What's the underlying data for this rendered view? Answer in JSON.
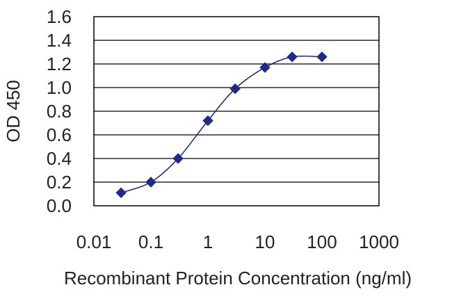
{
  "chart_data": {
    "type": "line",
    "title": "",
    "xlabel": "Recombinant Protein Concentration (ng/ml)",
    "ylabel": "OD 450",
    "x_scale": "log",
    "xlim": [
      0.01,
      1000
    ],
    "ylim": [
      0.0,
      1.6
    ],
    "x_ticks": [
      "0.01",
      "0.1",
      "1",
      "10",
      "100",
      "1000"
    ],
    "y_ticks": [
      "0.0",
      "0.2",
      "0.4",
      "0.6",
      "0.8",
      "1.0",
      "1.2",
      "1.4",
      "1.6"
    ],
    "grid": "horizontal",
    "legend": "none",
    "series": [
      {
        "x": [
          0.03,
          0.1,
          0.3,
          1,
          3,
          10,
          30,
          100
        ],
        "y": [
          0.11,
          0.2,
          0.4,
          0.72,
          0.99,
          1.17,
          1.26,
          1.26
        ],
        "color": "#1f2a8c"
      }
    ],
    "colors": {
      "line": "#1f2a8c",
      "marker": "#1f2a8c",
      "axis": "#000000",
      "grid": "#000000",
      "text": "#222222"
    }
  }
}
